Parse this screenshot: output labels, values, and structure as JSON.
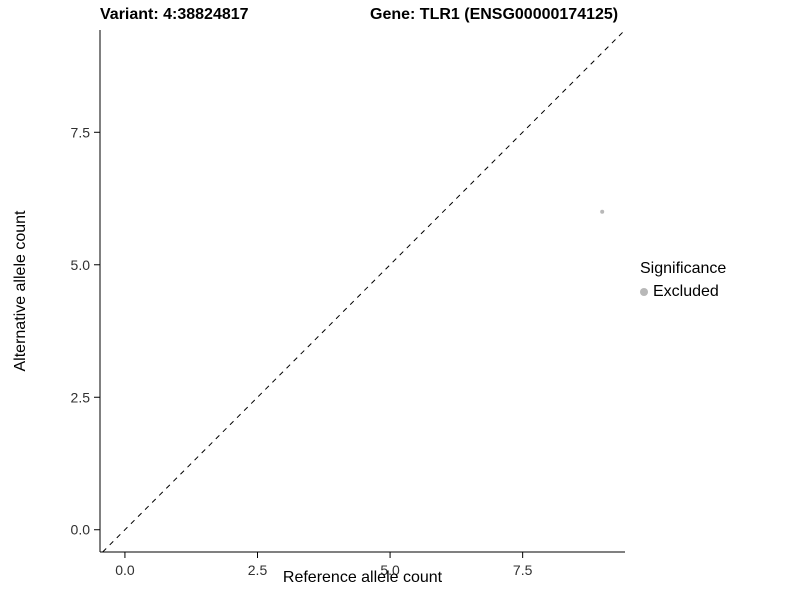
{
  "chart_data": {
    "type": "scatter",
    "titles": {
      "left": "Variant: 4:38824817",
      "right": "Gene: TLR1 (ENSG00000174125)"
    },
    "xlabel": "Reference allele count",
    "ylabel": "Alternative allele count",
    "x_ticks": [
      0.0,
      2.5,
      5.0,
      7.5
    ],
    "y_ticks": [
      0.0,
      2.5,
      5.0,
      7.5
    ],
    "x_tick_labels": [
      "0.0",
      "2.5",
      "5.0",
      "7.5"
    ],
    "y_tick_labels": [
      "0.0",
      "2.5",
      "5.0",
      "7.5"
    ],
    "xlim": [
      -0.47,
      9.43
    ],
    "ylim": [
      -0.42,
      9.43
    ],
    "grid": false,
    "series": [
      {
        "name": "Excluded",
        "color": "#b8b8b8",
        "point_radius": 2,
        "points": [
          {
            "x": 9,
            "y": 6
          }
        ]
      }
    ],
    "reference_line": {
      "kind": "identity",
      "style": "dashed",
      "color": "#000000"
    },
    "legend": {
      "title": "Significance",
      "position": "right",
      "entries": [
        {
          "label": "Excluded",
          "color": "#b8b8b8"
        }
      ]
    }
  }
}
